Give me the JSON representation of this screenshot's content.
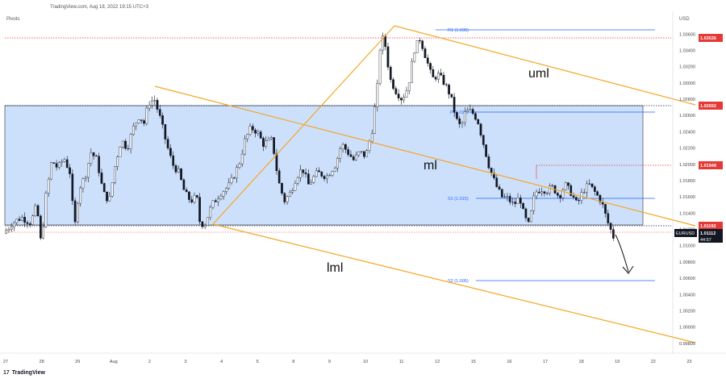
{
  "header": {
    "source_line": "TradingView.com, Aug 18, 2022 19:15 UTC+3",
    "indicator_label": "Pivots",
    "currency": "USD"
  },
  "footer": {
    "brand": "TradingView"
  },
  "colors": {
    "up": "#131722",
    "zone_fill": "#bbd6fb",
    "zone_border": "#1f2937",
    "channel": "#f5a623",
    "pivot_line": "#2962ff",
    "red_dotted": "#e53935",
    "price_tag": "#131722"
  },
  "chart_data": {
    "type": "candlestick",
    "symbol": "EURUSD",
    "currency": "USD",
    "x_ticks": [
      "27",
      "28",
      "29",
      "Aug",
      "2",
      "3",
      "4",
      "5",
      "8",
      "9",
      "10",
      "11",
      "12",
      "15",
      "16",
      "17",
      "18",
      "19",
      "22",
      "23"
    ],
    "y_ticks": [
      "1.03600",
      "1.03400",
      "1.03200",
      "1.03000",
      "1.02800",
      "1.02600",
      "1.02400",
      "1.02200",
      "1.02000",
      "1.01800",
      "1.01600",
      "1.01400",
      "1.01200",
      "1.01000",
      "1.00800",
      "1.00600",
      "1.00400",
      "1.00200",
      "1.00000",
      "0.99800"
    ],
    "y_range": [
      0.9968,
      1.0388
    ],
    "price_path": [
      [
        0.0,
        1.0115
      ],
      [
        0.6,
        1.0128
      ],
      [
        1.2,
        1.0135
      ],
      [
        1.8,
        1.0128
      ],
      [
        2.2,
        1.015
      ],
      [
        2.5,
        1.01
      ],
      [
        2.8,
        1.016
      ],
      [
        3.2,
        1.0205
      ],
      [
        3.6,
        1.0195
      ],
      [
        4.0,
        1.0208
      ],
      [
        4.4,
        1.019
      ],
      [
        4.7,
        1.012
      ],
      [
        5.0,
        1.017
      ],
      [
        5.4,
        1.0185
      ],
      [
        5.8,
        1.0215
      ],
      [
        6.2,
        1.0205
      ],
      [
        6.6,
        1.0165
      ],
      [
        7.0,
        1.0155
      ],
      [
        7.4,
        1.02
      ],
      [
        7.8,
        1.023
      ],
      [
        8.2,
        1.022
      ],
      [
        8.6,
        1.0245
      ],
      [
        9.0,
        1.026
      ],
      [
        9.3,
        1.025
      ],
      [
        9.6,
        1.0275
      ],
      [
        10.0,
        1.028
      ],
      [
        10.4,
        1.0255
      ],
      [
        10.8,
        1.0225
      ],
      [
        11.2,
        1.02
      ],
      [
        11.6,
        1.019
      ],
      [
        12.0,
        1.0165
      ],
      [
        12.4,
        1.0155
      ],
      [
        12.8,
        1.016
      ],
      [
        13.0,
        1.013
      ],
      [
        13.3,
        1.0125
      ],
      [
        13.8,
        1.015
      ],
      [
        14.4,
        1.0165
      ],
      [
        15.0,
        1.0175
      ],
      [
        15.6,
        1.02
      ],
      [
        16.0,
        1.023
      ],
      [
        16.4,
        1.0245
      ],
      [
        16.8,
        1.024
      ],
      [
        17.2,
        1.0225
      ],
      [
        17.8,
        1.023
      ],
      [
        18.2,
        1.018
      ],
      [
        18.6,
        1.0155
      ],
      [
        19.0,
        1.0165
      ],
      [
        19.4,
        1.0185
      ],
      [
        19.8,
        1.0195
      ],
      [
        20.2,
        1.0175
      ],
      [
        20.8,
        1.019
      ],
      [
        21.4,
        1.0185
      ],
      [
        22.0,
        1.02
      ],
      [
        22.4,
        1.0225
      ],
      [
        22.8,
        1.0215
      ],
      [
        23.2,
        1.0205
      ],
      [
        23.6,
        1.0215
      ],
      [
        24.0,
        1.021
      ],
      [
        24.4,
        1.024
      ],
      [
        24.8,
        1.03
      ],
      [
        25.0,
        1.036
      ],
      [
        25.3,
        1.0345
      ],
      [
        25.6,
        1.0305
      ],
      [
        26.0,
        1.029
      ],
      [
        26.4,
        1.028
      ],
      [
        26.8,
        1.0295
      ],
      [
        27.2,
        1.034
      ],
      [
        27.6,
        1.0355
      ],
      [
        28.0,
        1.033
      ],
      [
        28.4,
        1.0305
      ],
      [
        28.8,
        1.031
      ],
      [
        29.2,
        1.03
      ],
      [
        29.6,
        1.0285
      ],
      [
        30.0,
        1.0255
      ],
      [
        30.3,
        1.0245
      ],
      [
        30.6,
        1.0265
      ],
      [
        31.0,
        1.0265
      ],
      [
        31.4,
        1.0255
      ],
      [
        31.8,
        1.0225
      ],
      [
        32.2,
        1.0195
      ],
      [
        32.6,
        1.0175
      ],
      [
        33.0,
        1.016
      ],
      [
        33.4,
        1.0158
      ],
      [
        33.8,
        1.015
      ],
      [
        34.2,
        1.016
      ],
      [
        34.5,
        1.0135
      ],
      [
        34.8,
        1.0125
      ],
      [
        35.2,
        1.0165
      ],
      [
        35.6,
        1.017
      ],
      [
        36.0,
        1.0168
      ],
      [
        36.4,
        1.0172
      ],
      [
        36.8,
        1.016
      ],
      [
        37.2,
        1.0175
      ],
      [
        37.6,
        1.0165
      ],
      [
        38.0,
        1.015
      ],
      [
        38.4,
        1.0168
      ],
      [
        38.8,
        1.0175
      ],
      [
        39.2,
        1.0165
      ],
      [
        39.6,
        1.0155
      ],
      [
        40.0,
        1.013
      ],
      [
        40.4,
        1.0111
      ]
    ],
    "levels": [
      {
        "label": "R1 (1.036)",
        "value": 1.0362,
        "color": "#2962ff"
      },
      {
        "label": "P (1.026)",
        "value": 1.0261,
        "color": "#2962ff"
      },
      {
        "label": "S1 (1.015)",
        "value": 1.0154,
        "color": "#2962ff"
      },
      {
        "label": "S2 (1.005)",
        "value": 1.0052,
        "color": "#2962ff"
      }
    ],
    "price_tags": [
      {
        "value": "1.03536",
        "bg": "#e53935"
      },
      {
        "value": "1.02692",
        "bg": "#e53935"
      },
      {
        "value": "1.01948",
        "bg": "#e53935"
      },
      {
        "value": "1.01192",
        "bg": "#e53935"
      },
      {
        "value": "1.01112",
        "bg": "#131722",
        "symbol": "EURUSD",
        "countdown": "44:57"
      }
    ],
    "annotations": [
      "uml",
      "ml",
      "lml"
    ]
  }
}
